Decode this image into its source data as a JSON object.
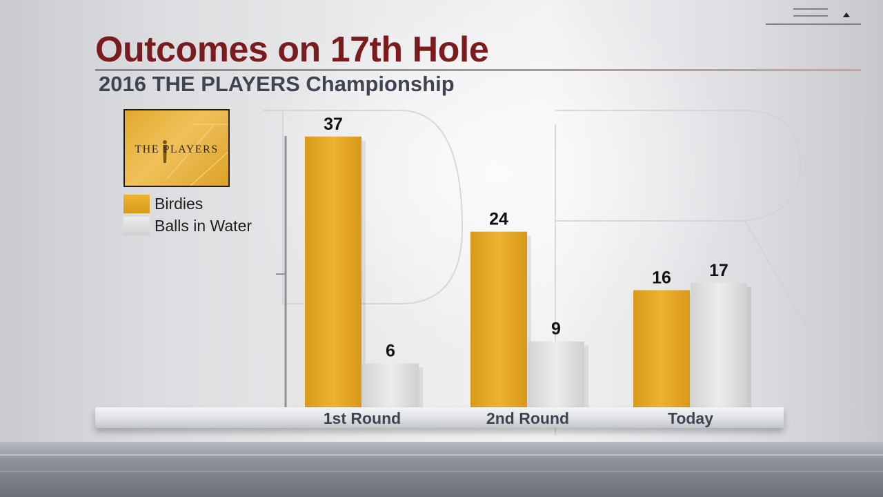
{
  "title": "Outcomes on 17th Hole",
  "subtitle": "2016 THE PLAYERS Championship",
  "logo": {
    "text": "THE PLAYERS",
    "icon": "players-logo-icon"
  },
  "legend": [
    {
      "label": "Birdies",
      "color": "#e6a623"
    },
    {
      "label": "Balls in Water",
      "color": "#dcdcdc"
    }
  ],
  "chart_data": {
    "type": "bar",
    "title": "Outcomes on 17th Hole",
    "subtitle": "2016 THE PLAYERS Championship",
    "xlabel": "",
    "ylabel": "",
    "categories": [
      "1st Round",
      "2nd Round",
      "Today"
    ],
    "series": [
      {
        "name": "Birdies",
        "values": [
          37,
          24,
          16
        ],
        "color": "#e6a623"
      },
      {
        "name": "Balls in Water",
        "values": [
          6,
          9,
          17
        ],
        "color": "#dcdcdc"
      }
    ],
    "ylim": [
      0,
      40
    ],
    "grid": false,
    "legend_position": "top-left"
  }
}
